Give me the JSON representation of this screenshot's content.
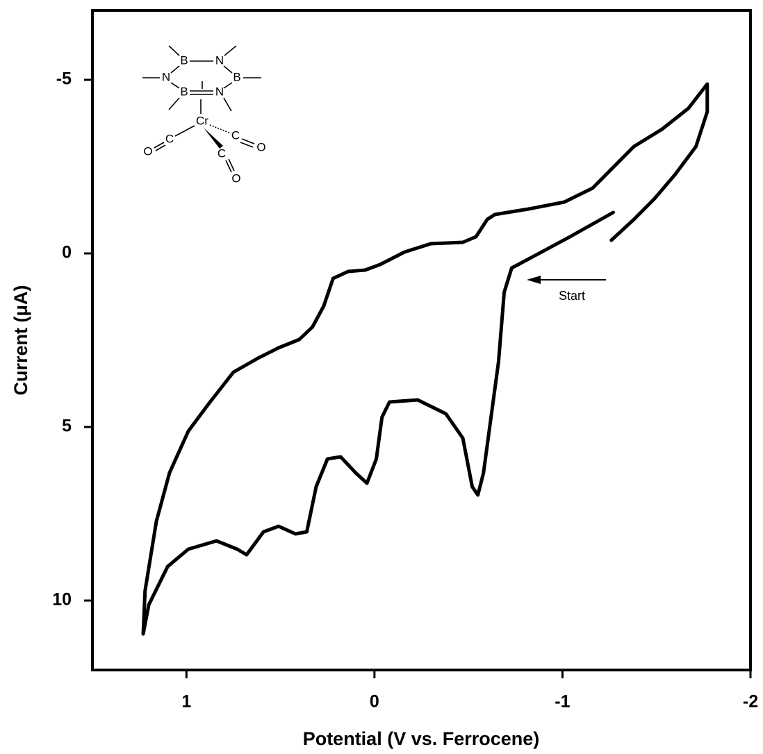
{
  "chart_data": {
    "type": "line",
    "x_label": "Potential (V vs. Ferrocene)",
    "y_label": "Current (μA)",
    "xlim": [
      1.5,
      -2
    ],
    "ylim": [
      12,
      -7
    ],
    "xticks": [
      1,
      0,
      -1,
      -2
    ],
    "yticks": [
      -5,
      0,
      5,
      10
    ],
    "annotation": "Start",
    "structure_atoms": [
      "B",
      "N",
      "N",
      "B",
      "B",
      "N",
      "Cr",
      "C",
      "O",
      "C",
      "O",
      "C",
      "O"
    ],
    "series": [
      {
        "color": "#000000",
        "x": [
          -1.27,
          -1.04,
          -0.82,
          -0.73,
          -0.69,
          -0.66,
          -0.62,
          -0.58,
          -0.55,
          -0.52,
          -0.47,
          -0.38,
          -0.23,
          -0.08,
          -0.04,
          -0.01,
          0.04,
          0.1,
          0.18,
          0.25,
          0.31,
          0.36,
          0.42,
          0.51,
          0.59,
          0.68,
          0.73,
          0.84,
          0.99,
          1.1,
          1.2,
          1.23,
          1.22,
          1.16,
          1.09,
          0.99,
          0.88,
          0.75,
          0.62,
          0.51,
          0.4,
          0.33,
          0.27,
          0.22,
          0.14,
          0.05,
          -0.03,
          -0.16,
          -0.3,
          -0.47,
          -0.54,
          -0.6,
          -0.64,
          -0.82,
          -1.01,
          -1.16,
          -1.27,
          -1.38,
          -1.53,
          -1.67,
          -1.77,
          -1.77,
          -1.71,
          -1.6,
          -1.49,
          -1.38,
          -1.26
        ],
        "values": [
          -1.18,
          -0.48,
          0.16,
          0.42,
          1.12,
          3.12,
          4.72,
          6.32,
          6.96,
          6.72,
          5.32,
          4.62,
          4.22,
          4.28,
          4.72,
          5.92,
          6.62,
          6.32,
          5.86,
          5.92,
          6.72,
          8.02,
          8.08,
          7.86,
          8.02,
          8.68,
          8.52,
          8.28,
          8.52,
          9.02,
          10.12,
          10.96,
          9.72,
          7.72,
          6.32,
          5.12,
          4.32,
          3.42,
          3.02,
          2.72,
          2.48,
          2.12,
          1.52,
          0.72,
          0.52,
          0.48,
          0.32,
          -0.04,
          -0.28,
          -0.32,
          -0.48,
          -0.98,
          -1.12,
          -1.28,
          -1.48,
          -1.88,
          -2.48,
          -3.08,
          -3.58,
          -4.18,
          -4.88,
          -4.08,
          -3.08,
          -2.28,
          -1.58,
          -0.98,
          -0.38
        ]
      }
    ]
  }
}
